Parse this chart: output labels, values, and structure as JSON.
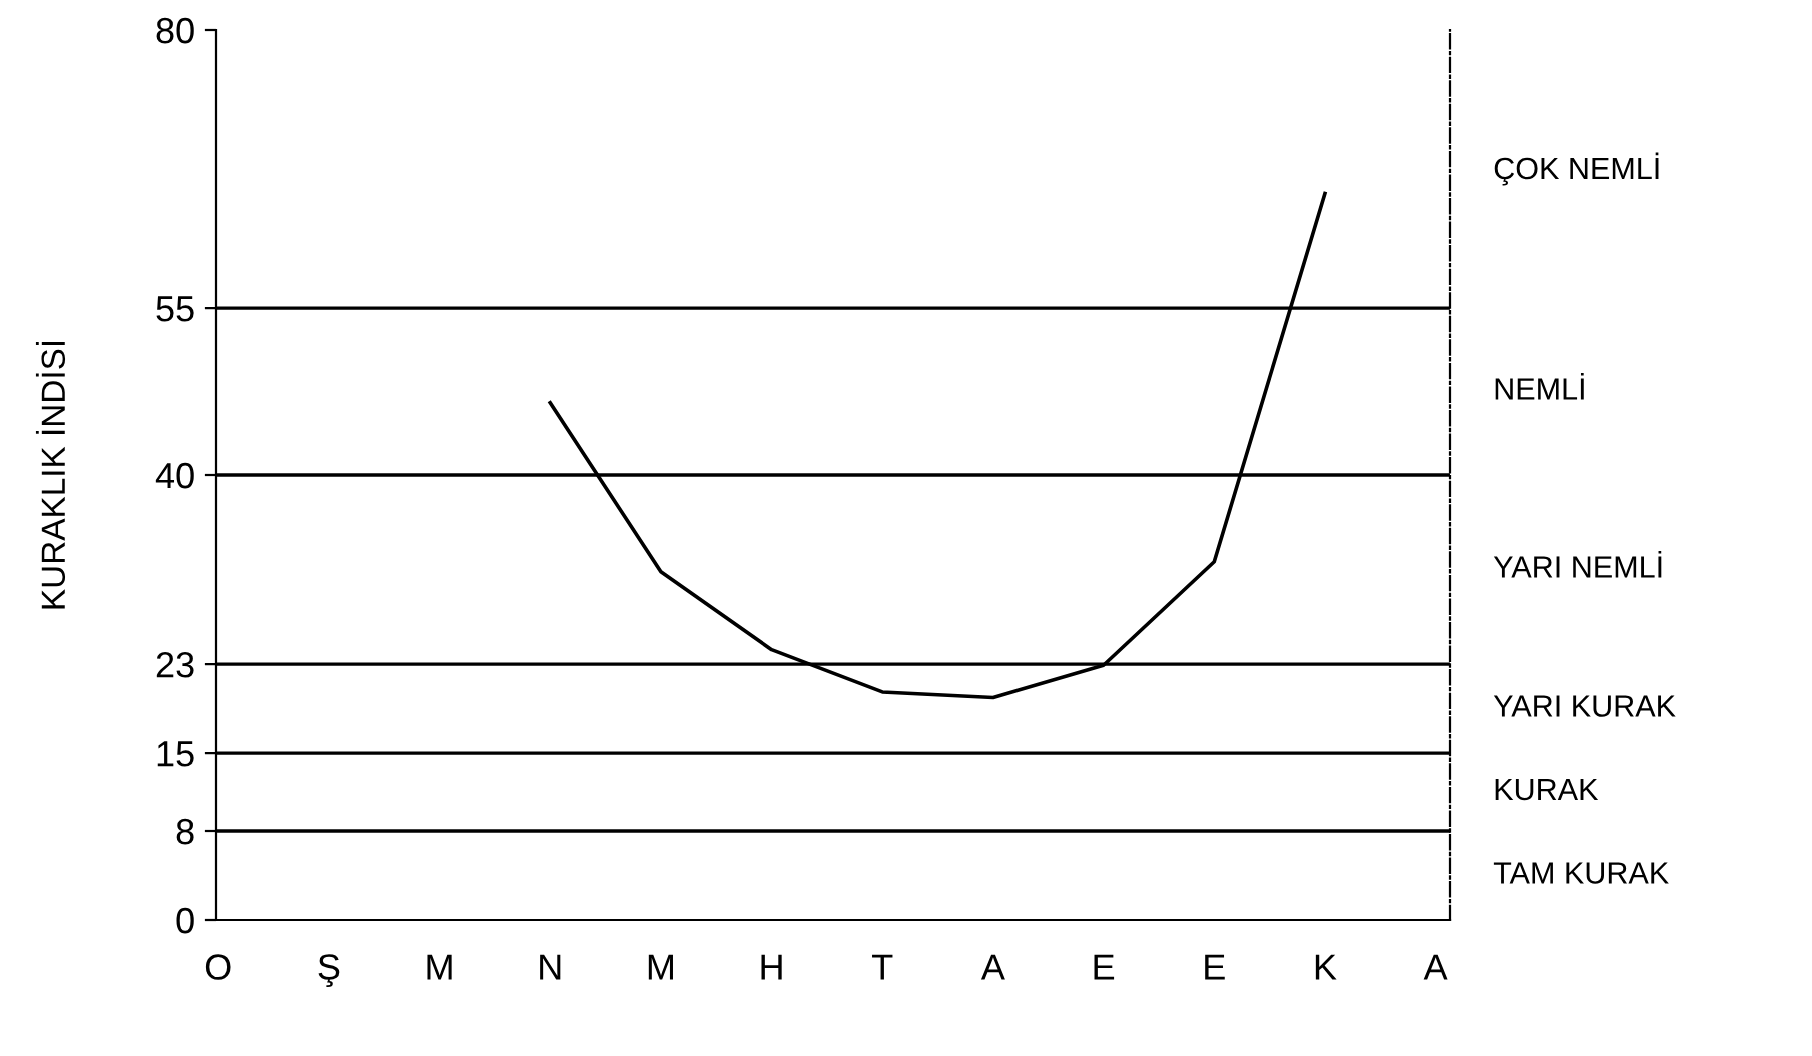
{
  "chart_data": {
    "type": "line",
    "ylabel": "KURAKLIK İNDİSİ",
    "categories": [
      "O",
      "Ş",
      "M",
      "N",
      "M",
      "H",
      "T",
      "A",
      "E",
      "E",
      "K",
      "A"
    ],
    "series": [
      {
        "color": "#000000",
        "values": [
          null,
          null,
          null,
          46.5,
          31.3,
          24.3,
          20.5,
          20,
          22.9,
          32.2,
          65.3,
          null
        ]
      }
    ],
    "ylim": [
      0,
      80
    ],
    "yticks": [
      0,
      8,
      15,
      23,
      40,
      55,
      80
    ],
    "ref_lines": [
      {
        "axis": "y",
        "value": 8,
        "color": "#000000"
      },
      {
        "axis": "y",
        "value": 15,
        "color": "#000000"
      },
      {
        "axis": "y",
        "value": 23,
        "color": "#000000"
      },
      {
        "axis": "y",
        "value": 40,
        "color": "#000000"
      },
      {
        "axis": "y",
        "value": 55,
        "color": "#000000"
      }
    ],
    "annotations": [
      "ÇOK NEMLİ",
      "NEMLİ",
      "YARI NEMLİ",
      "YARI KURAK",
      "KURAK",
      "TAM KURAK"
    ],
    "grid": false,
    "legend": false,
    "marker": "none",
    "line_style": "solid"
  }
}
